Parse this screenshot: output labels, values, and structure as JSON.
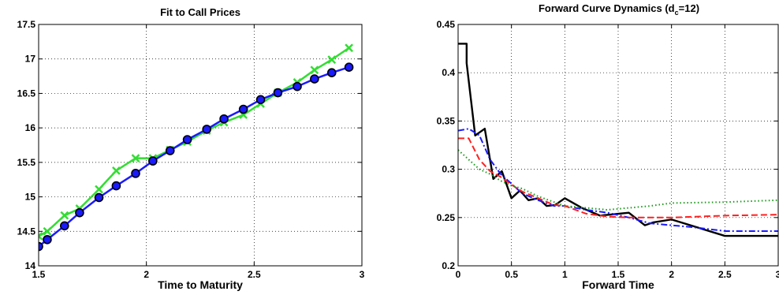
{
  "chart_data": [
    {
      "type": "line",
      "title": "Fit to Call Prices",
      "xlabel": "Time to Maturity",
      "ylabel": "",
      "xlim": [
        1.5,
        3
      ],
      "ylim": [
        14,
        17.5
      ],
      "xticks": [
        "1.5",
        "2",
        "2.5",
        "3"
      ],
      "yticks": [
        "14",
        "14.5",
        "15",
        "15.5",
        "16",
        "16.5",
        "17",
        "17.5"
      ],
      "grid": true,
      "series": [
        {
          "color": "#33dd33",
          "marker": "x",
          "x": [
            1.5,
            1.54,
            1.62,
            1.69,
            1.78,
            1.86,
            1.95,
            2.03,
            2.11,
            2.19,
            2.28,
            2.36,
            2.45,
            2.53,
            2.61,
            2.7,
            2.78,
            2.86,
            2.94
          ],
          "y": [
            14.43,
            14.5,
            14.73,
            14.83,
            15.11,
            15.38,
            15.56,
            15.56,
            15.68,
            15.8,
            15.96,
            16.08,
            16.19,
            16.35,
            16.51,
            16.66,
            16.84,
            16.99,
            17.16
          ]
        },
        {
          "color": "#1a1aff",
          "marker": "o",
          "x": [
            1.5,
            1.54,
            1.62,
            1.69,
            1.78,
            1.86,
            1.95,
            2.03,
            2.11,
            2.19,
            2.28,
            2.36,
            2.45,
            2.53,
            2.61,
            2.7,
            2.78,
            2.86,
            2.94
          ],
          "y": [
            14.28,
            14.38,
            14.58,
            14.77,
            14.99,
            15.16,
            15.34,
            15.52,
            15.67,
            15.83,
            15.98,
            16.13,
            16.27,
            16.41,
            16.51,
            16.6,
            16.71,
            16.8,
            16.88
          ]
        }
      ]
    },
    {
      "type": "line",
      "title": "Forward Curve Dynamics (d",
      "title_subscript": "c",
      "title_suffix": "=12)",
      "xlabel": "Forward Time",
      "ylabel": "",
      "xlim": [
        0,
        3
      ],
      "ylim": [
        0.2,
        0.45
      ],
      "xticks": [
        "0",
        "0.5",
        "1",
        "1.5",
        "2",
        "2.5",
        "3"
      ],
      "yticks": [
        "0.2",
        "0.25",
        "0.3",
        "0.35",
        "0.4",
        "0.45"
      ],
      "grid": true,
      "series": [
        {
          "color": "#000000",
          "style": "solid",
          "x": [
            0,
            0.08,
            0.08,
            0.16,
            0.25,
            0.33,
            0.41,
            0.5,
            0.58,
            0.66,
            0.75,
            0.83,
            0.91,
            1.0,
            1.16,
            1.33,
            1.6,
            1.75,
            1.83,
            2.0,
            2.5,
            3.0
          ],
          "y": [
            0.43,
            0.43,
            0.41,
            0.335,
            0.342,
            0.29,
            0.298,
            0.27,
            0.278,
            0.268,
            0.27,
            0.262,
            0.263,
            0.27,
            0.26,
            0.252,
            0.255,
            0.242,
            0.245,
            0.248,
            0.231,
            0.231
          ]
        },
        {
          "color": "#1a1aff",
          "style": "dashdot",
          "x": [
            0,
            0.1,
            0.2,
            0.3,
            0.4,
            0.5,
            0.6,
            0.75,
            0.9,
            1.0,
            1.2,
            1.4,
            1.6,
            1.8,
            2.0,
            2.2,
            2.5,
            3.0
          ],
          "y": [
            0.34,
            0.342,
            0.335,
            0.31,
            0.295,
            0.285,
            0.275,
            0.268,
            0.262,
            0.262,
            0.258,
            0.255,
            0.25,
            0.244,
            0.242,
            0.24,
            0.236,
            0.236
          ]
        },
        {
          "color": "#ff2020",
          "style": "dashed",
          "x": [
            0,
            0.1,
            0.2,
            0.3,
            0.4,
            0.5,
            0.6,
            0.75,
            0.9,
            1.0,
            1.2,
            1.4,
            1.6,
            2.0,
            2.5,
            3.0
          ],
          "y": [
            0.332,
            0.332,
            0.31,
            0.298,
            0.292,
            0.284,
            0.277,
            0.27,
            0.263,
            0.262,
            0.254,
            0.251,
            0.25,
            0.25,
            0.252,
            0.253
          ]
        },
        {
          "color": "#1a9a1a",
          "style": "dotted",
          "x": [
            0,
            0.1,
            0.2,
            0.3,
            0.4,
            0.5,
            0.6,
            0.75,
            0.9,
            1.0,
            1.2,
            1.4,
            1.6,
            1.8,
            2.0,
            2.5,
            3.0
          ],
          "y": [
            0.32,
            0.31,
            0.3,
            0.295,
            0.288,
            0.283,
            0.28,
            0.272,
            0.266,
            0.262,
            0.26,
            0.258,
            0.26,
            0.262,
            0.265,
            0.266,
            0.268
          ]
        }
      ]
    }
  ]
}
